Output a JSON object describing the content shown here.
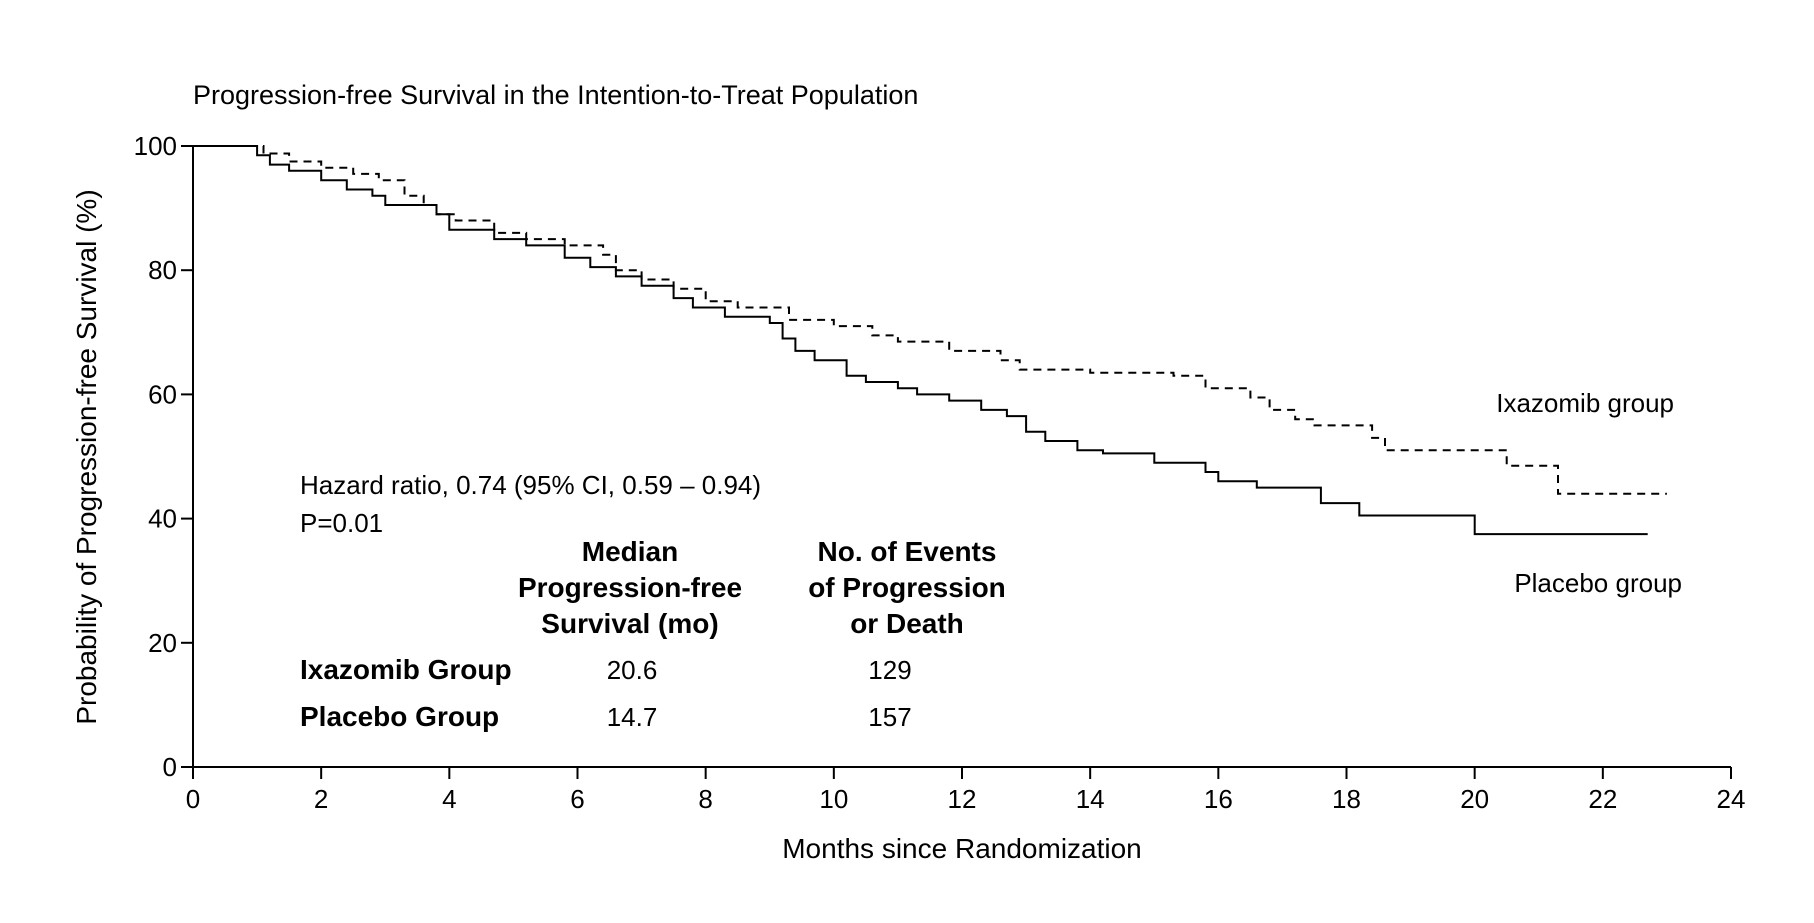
{
  "chart_data": {
    "type": "line",
    "title": "Progression-free Survival in the Intention-to-Treat Population",
    "xlabel": "Months since Randomization",
    "ylabel": "Probability of Progression-free Survival (%)",
    "xlim": [
      0,
      24
    ],
    "ylim": [
      0,
      100
    ],
    "x_ticks": [
      0,
      2,
      4,
      6,
      8,
      10,
      12,
      14,
      16,
      18,
      20,
      22,
      24
    ],
    "y_ticks": [
      0,
      20,
      40,
      60,
      80,
      100
    ],
    "grid": false,
    "series": [
      {
        "name": "Ixazomib group",
        "style": "dashed",
        "color": "#000000",
        "points": [
          [
            0,
            100
          ],
          [
            0.9,
            100
          ],
          [
            1.1,
            98.8
          ],
          [
            1.5,
            97.5
          ],
          [
            2.0,
            96.5
          ],
          [
            2.5,
            95.5
          ],
          [
            2.9,
            94.5
          ],
          [
            3.3,
            92.0
          ],
          [
            3.6,
            90.5
          ],
          [
            3.8,
            89.0
          ],
          [
            4.1,
            88.0
          ],
          [
            4.7,
            86.0
          ],
          [
            5.2,
            85.0
          ],
          [
            5.8,
            84.0
          ],
          [
            6.4,
            82.5
          ],
          [
            6.6,
            80.0
          ],
          [
            7.0,
            78.5
          ],
          [
            7.5,
            77.0
          ],
          [
            8.0,
            75.0
          ],
          [
            8.5,
            74.0
          ],
          [
            9.3,
            72.0
          ],
          [
            10.0,
            71.0
          ],
          [
            10.6,
            69.5
          ],
          [
            11.0,
            68.5
          ],
          [
            11.8,
            67.0
          ],
          [
            12.6,
            65.5
          ],
          [
            12.9,
            64.0
          ],
          [
            14.0,
            63.5
          ],
          [
            15.3,
            63.0
          ],
          [
            15.8,
            61.0
          ],
          [
            16.5,
            59.5
          ],
          [
            16.8,
            57.5
          ],
          [
            17.2,
            56.0
          ],
          [
            17.5,
            55.0
          ],
          [
            18.4,
            53.0
          ],
          [
            18.6,
            51.0
          ],
          [
            20.5,
            48.5
          ],
          [
            21.3,
            44.0
          ],
          [
            23.0,
            44.0
          ]
        ]
      },
      {
        "name": "Placebo group",
        "style": "solid",
        "color": "#000000",
        "points": [
          [
            0,
            100
          ],
          [
            1.0,
            98.5
          ],
          [
            1.2,
            97.0
          ],
          [
            1.5,
            96.0
          ],
          [
            2.0,
            94.5
          ],
          [
            2.4,
            93.0
          ],
          [
            2.8,
            92.0
          ],
          [
            3.0,
            90.5
          ],
          [
            3.8,
            89.0
          ],
          [
            4.0,
            86.5
          ],
          [
            4.7,
            85.0
          ],
          [
            5.2,
            84.0
          ],
          [
            5.8,
            82.0
          ],
          [
            6.2,
            80.5
          ],
          [
            6.6,
            79.0
          ],
          [
            7.0,
            77.5
          ],
          [
            7.5,
            75.5
          ],
          [
            7.8,
            74.0
          ],
          [
            8.3,
            72.5
          ],
          [
            9.0,
            71.5
          ],
          [
            9.2,
            69.0
          ],
          [
            9.4,
            67.0
          ],
          [
            9.7,
            65.5
          ],
          [
            10.2,
            63.0
          ],
          [
            10.5,
            62.0
          ],
          [
            11.0,
            61.0
          ],
          [
            11.3,
            60.0
          ],
          [
            11.8,
            59.0
          ],
          [
            12.3,
            57.5
          ],
          [
            12.7,
            56.5
          ],
          [
            13.0,
            54.0
          ],
          [
            13.3,
            52.5
          ],
          [
            13.8,
            51.0
          ],
          [
            14.2,
            50.5
          ],
          [
            15.0,
            49.0
          ],
          [
            15.8,
            47.5
          ],
          [
            16.0,
            46.0
          ],
          [
            16.6,
            45.0
          ],
          [
            17.6,
            42.5
          ],
          [
            18.2,
            40.5
          ],
          [
            20.0,
            37.5
          ],
          [
            22.7,
            37.5
          ]
        ]
      }
    ],
    "series_labels": [
      {
        "text": "Ixazomib group",
        "series": 0
      },
      {
        "text": "Placebo group",
        "series": 1
      }
    ],
    "annotations": {
      "hazard_ratio": "Hazard ratio, 0.74 (95% CI, 0.59 – 0.94)",
      "p_value": "P=0.01"
    },
    "summary_table": {
      "col1_header": [
        "Median",
        "Progression-free",
        "Survival (mo)"
      ],
      "col2_header": [
        "No. of Events",
        "of Progression",
        "or Death"
      ],
      "rows": [
        {
          "label": "Ixazomib Group",
          "median": "20.6",
          "events": "129"
        },
        {
          "label": "Placebo Group",
          "median": "14.7",
          "events": "157"
        }
      ]
    }
  }
}
